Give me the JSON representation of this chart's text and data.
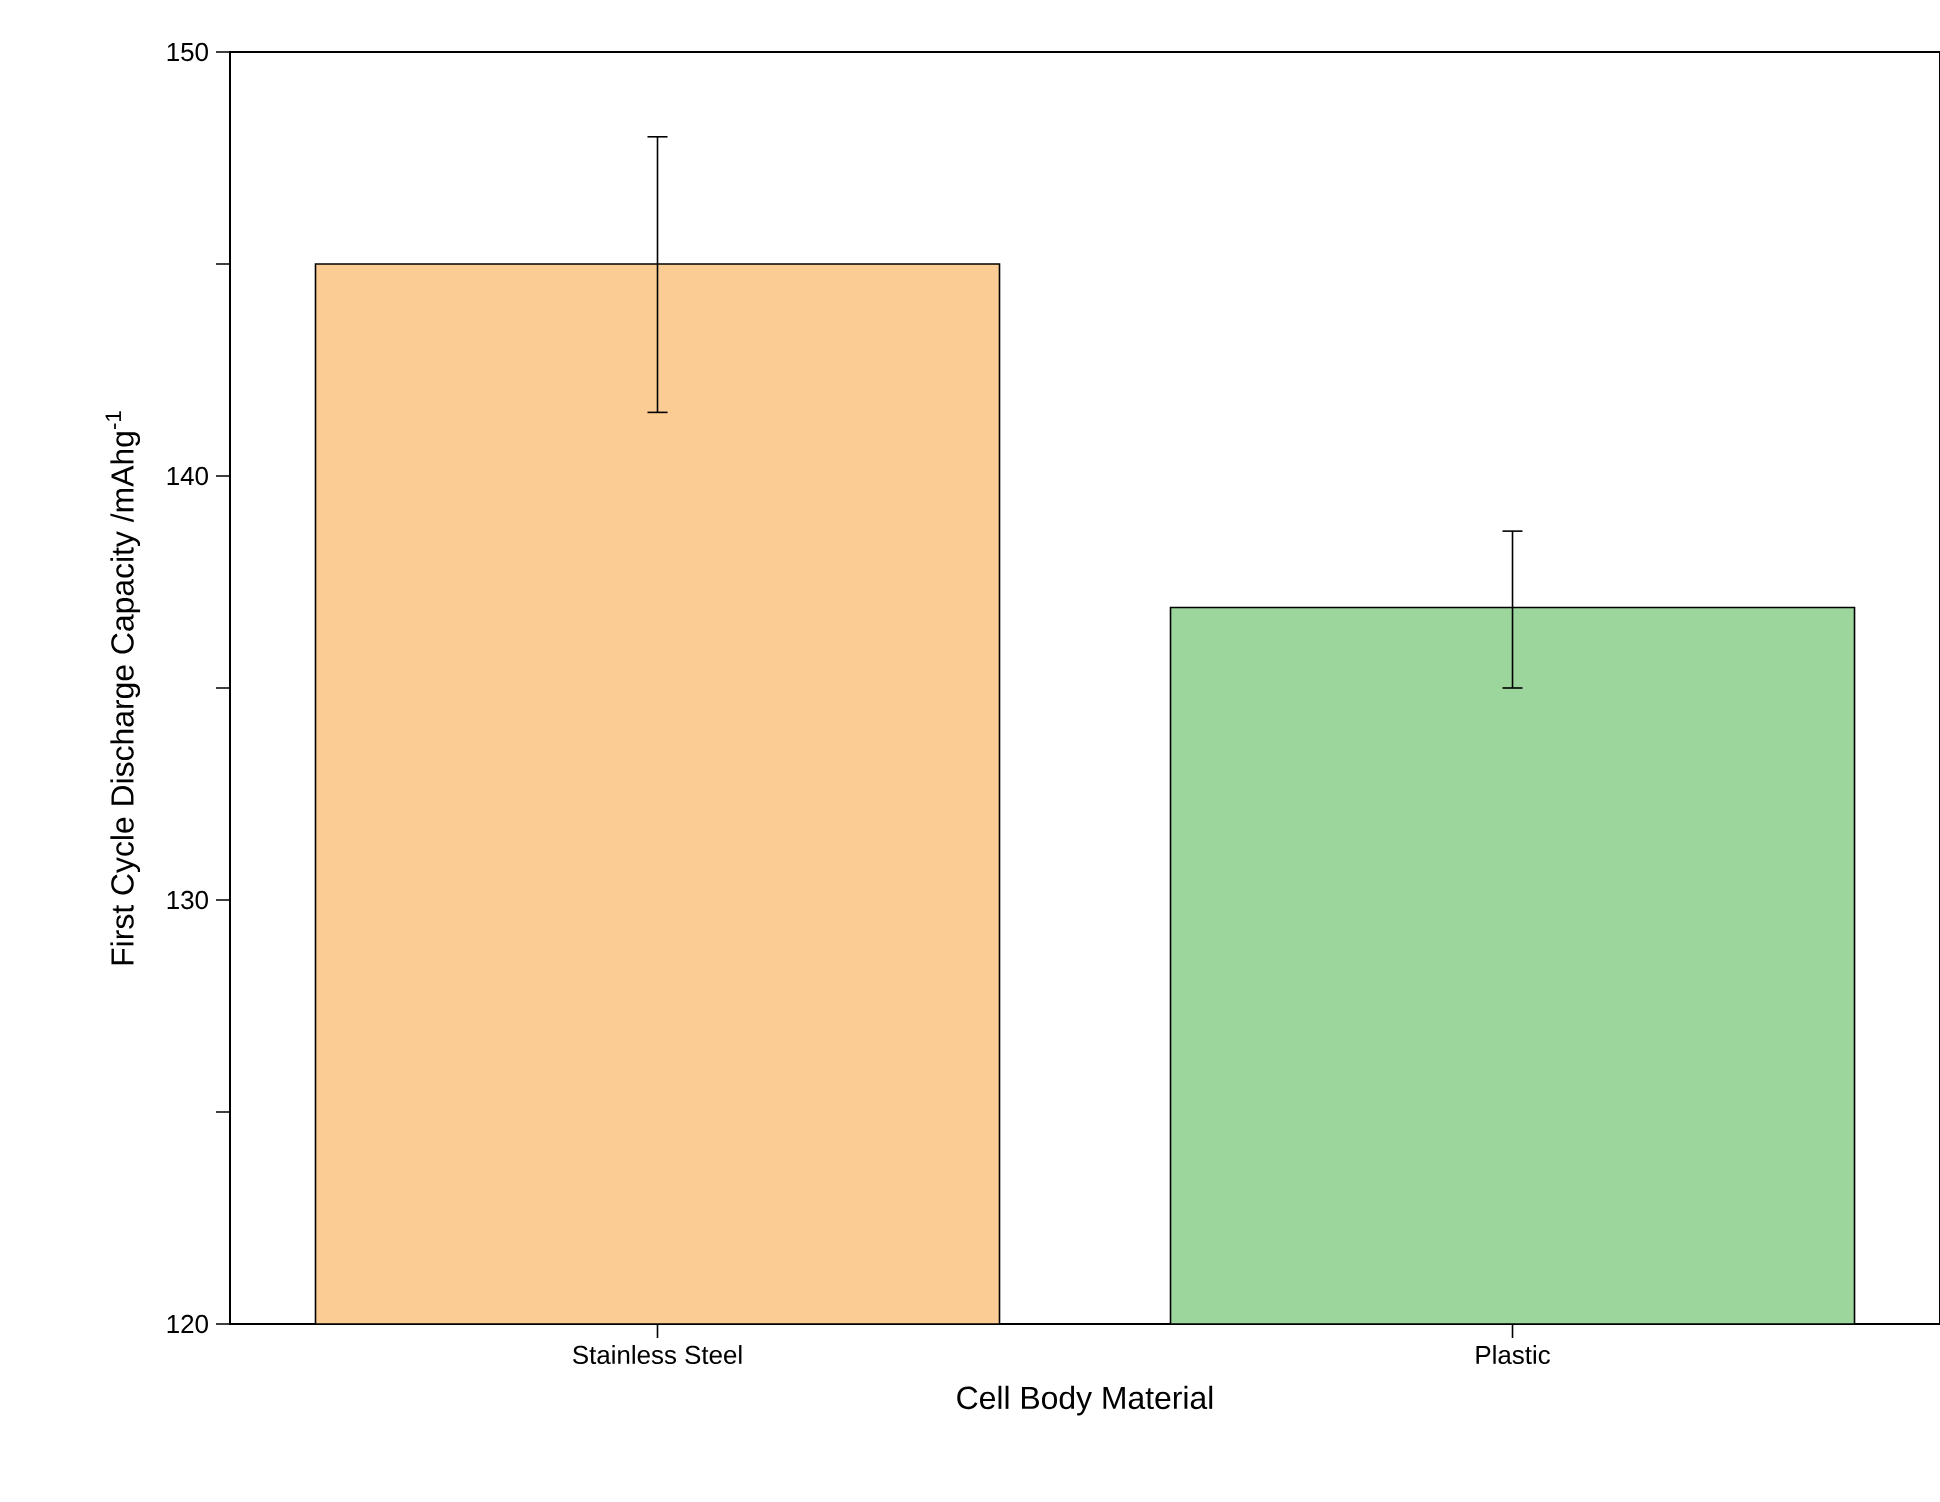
{
  "chart_data": {
    "type": "bar",
    "xlabel": "Cell Body Material",
    "ylabel": "First Cycle Discharge Capacity /mAhg$^{-1}$",
    "categories": [
      "Stainless Steel",
      "Plastic"
    ],
    "values": [
      145.0,
      136.9
    ],
    "colors": [
      "#fccc95",
      "#9dd69c"
    ],
    "errors": [
      [
        141.5,
        148.0
      ],
      [
        135.0,
        138.7
      ]
    ],
    "ylim": [
      120,
      150
    ],
    "yticks": [
      120,
      {
        "value": 125,
        "label": null
      },
      130,
      {
        "value": 135,
        "label": null
      },
      140,
      {
        "value": 145,
        "label": null
      },
      150
    ],
    "grid": false
  }
}
